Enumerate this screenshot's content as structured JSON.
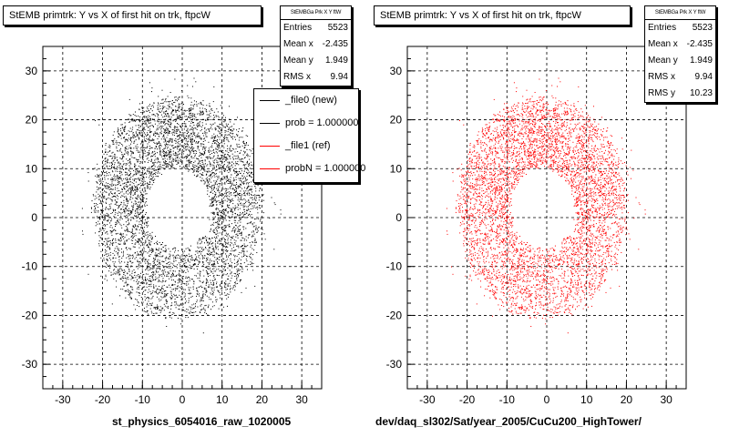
{
  "chart_data": [
    {
      "type": "scatter",
      "title": "StEMB primtrk: Y vs X of first hit on trk, ftpcW",
      "xlabel": "st_physics_6054016_raw_1020005",
      "ylabel": "",
      "xlim": [
        -35,
        35
      ],
      "ylim": [
        -35,
        35
      ],
      "xticks": [
        -30,
        -20,
        -10,
        0,
        10,
        20,
        30
      ],
      "yticks": [
        -30,
        -20,
        -10,
        0,
        10,
        20,
        30
      ],
      "grid": true,
      "marker_color": "#000000",
      "stats": {
        "header": "StEMBGa Prk X Y ftW",
        "rows": [
          {
            "label": "Entries",
            "value": "5523"
          },
          {
            "label": "Mean x",
            "value": "-2.435"
          },
          {
            "label": "Mean y",
            "value": "1.949"
          },
          {
            "label": "RMS x",
            "value": "9.94"
          }
        ]
      },
      "legend": {
        "placement": "top-right",
        "entries": [
          {
            "label": "_file0 (new)",
            "color": "#000000"
          },
          {
            "label": "prob = 1.000000",
            "color": "#000000"
          },
          {
            "label": "_file1 (ref)",
            "color": "#ff0000"
          },
          {
            "label": "probN = 1.000000",
            "color": "#ff0000"
          }
        ]
      },
      "distribution": {
        "entries": 5523,
        "mean_x": -2.435,
        "mean_y": 1.949,
        "rms_x": 9.94,
        "rms_y": 10.23
      }
    },
    {
      "type": "scatter",
      "title": "StEMB primtrk: Y vs X of first hit on trk, ftpcW",
      "xlabel": "dev/daq_sl302/Sat/year_2005/CuCu200_HighTower/",
      "ylabel": "",
      "xlim": [
        -35,
        35
      ],
      "ylim": [
        -35,
        35
      ],
      "xticks": [
        -30,
        -20,
        -10,
        0,
        10,
        20,
        30
      ],
      "yticks": [
        -30,
        -20,
        -10,
        0,
        10,
        20,
        30
      ],
      "grid": true,
      "marker_color": "#ff0000",
      "stats": {
        "header": "StEMBGa Prk X Y ftW",
        "rows": [
          {
            "label": "Entries",
            "value": "5523"
          },
          {
            "label": "Mean x",
            "value": "-2.435"
          },
          {
            "label": "Mean y",
            "value": "1.949"
          },
          {
            "label": "RMS x",
            "value": "9.94"
          },
          {
            "label": "RMS y",
            "value": "10.23"
          }
        ]
      },
      "distribution": {
        "entries": 5523,
        "mean_x": -2.435,
        "mean_y": 1.949,
        "rms_x": 9.94,
        "rms_y": 10.23
      }
    }
  ]
}
